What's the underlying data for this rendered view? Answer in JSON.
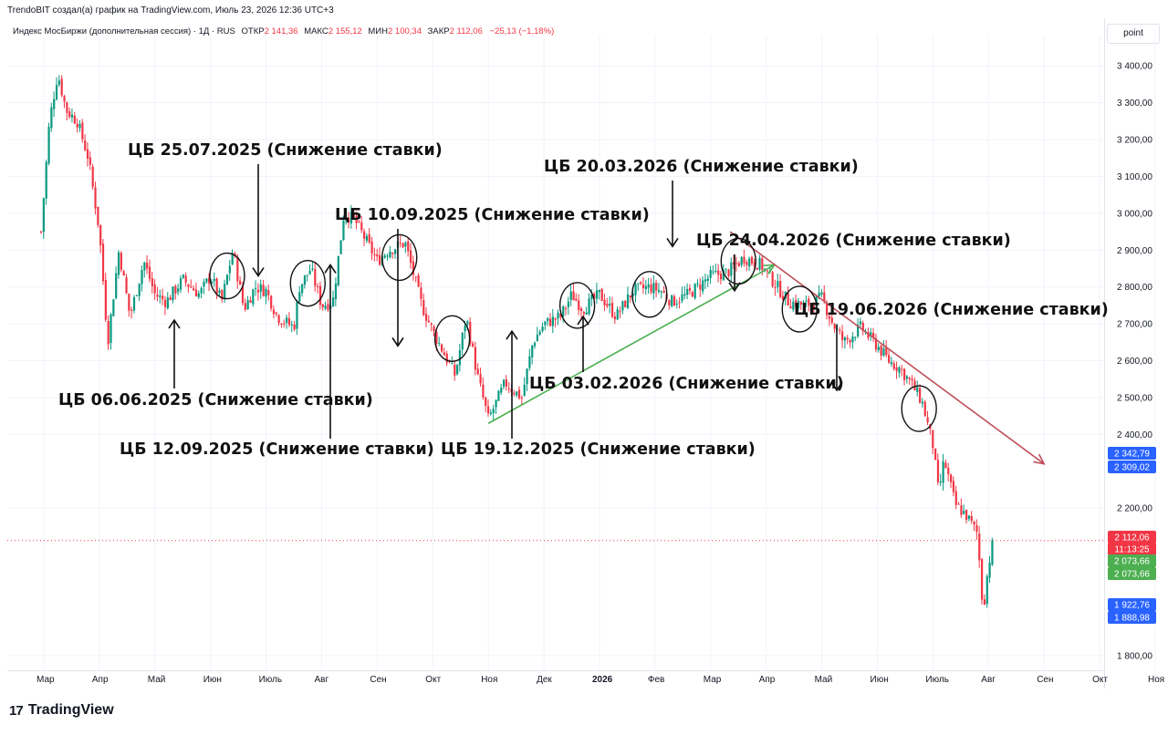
{
  "header": {
    "title": "TrendoBIT создал(а) график на TradingView.com, Июль 23, 2026 12:36 UTC+3"
  },
  "legend": {
    "symbol": "Индекс МосБиржи (дополнительная сессия) · 1Д · RUS",
    "open_label": "ОТКР",
    "open": "2 141,36",
    "high_label": "МАКС",
    "high": "2 155,12",
    "low_label": "МИН",
    "low": "2 100,34",
    "close_label": "ЗАКР",
    "close": "2 112,06",
    "change": "−25,13 (−1,18%)"
  },
  "axis_unit": "point",
  "footer": {
    "brand": "TradingView",
    "logo": "17"
  },
  "colors": {
    "up": "#089981",
    "down": "#f23645",
    "green_trend": "#4caf50",
    "red_trend": "#c0505a"
  },
  "chart_data": {
    "type": "candlestick",
    "instrument": "Индекс МосБиржи (дополнительная сессия)",
    "timeframe": "1Д",
    "ylim": [
      1760,
      3460
    ],
    "y_ticks": [
      "3 400,00",
      "3 300,00",
      "3 200,00",
      "3 100,00",
      "3 000,00",
      "2 900,00",
      "2 800,00",
      "2 700,00",
      "2 600,00",
      "2 500,00",
      "2 400,00",
      "2 200,00",
      "1 800,00"
    ],
    "y_tick_values": [
      3400,
      3300,
      3200,
      3100,
      3000,
      2900,
      2800,
      2700,
      2600,
      2500,
      2400,
      2200,
      1800
    ],
    "x_ticks": [
      "Мар",
      "Апр",
      "Май",
      "Июн",
      "Июль",
      "Авг",
      "Сен",
      "Окт",
      "Ноя",
      "Дек",
      "2026",
      "Фев",
      "Мар",
      "Апр",
      "Май",
      "Июн",
      "Июль",
      "Авг",
      "Сен",
      "Окт",
      "Ноя"
    ],
    "x_tick_months": [
      0,
      1,
      2,
      3,
      4,
      5,
      6,
      7,
      8,
      9,
      10,
      11,
      12,
      13,
      14,
      15,
      16,
      17,
      18,
      19,
      20
    ],
    "price_path": [
      [
        -0.05,
        2950
      ],
      [
        0.1,
        3250
      ],
      [
        0.25,
        3380
      ],
      [
        0.4,
        3280
      ],
      [
        0.6,
        3250
      ],
      [
        0.8,
        3150
      ],
      [
        1.0,
        2950
      ],
      [
        1.15,
        2650
      ],
      [
        1.35,
        2900
      ],
      [
        1.55,
        2720
      ],
      [
        1.8,
        2870
      ],
      [
        2.0,
        2780
      ],
      [
        2.2,
        2760
      ],
      [
        2.5,
        2820
      ],
      [
        2.8,
        2780
      ],
      [
        3.0,
        2830
      ],
      [
        3.2,
        2760
      ],
      [
        3.4,
        2900
      ],
      [
        3.6,
        2740
      ],
      [
        3.8,
        2800
      ],
      [
        4.0,
        2790
      ],
      [
        4.2,
        2720
      ],
      [
        4.5,
        2690
      ],
      [
        4.6,
        2800
      ],
      [
        4.8,
        2850
      ],
      [
        5.0,
        2750
      ],
      [
        5.2,
        2760
      ],
      [
        5.4,
        3000
      ],
      [
        5.6,
        2980
      ],
      [
        6.0,
        2870
      ],
      [
        6.2,
        2900
      ],
      [
        6.5,
        2920
      ],
      [
        6.8,
        2750
      ],
      [
        7.0,
        2680
      ],
      [
        7.2,
        2620
      ],
      [
        7.4,
        2560
      ],
      [
        7.6,
        2720
      ],
      [
        7.8,
        2560
      ],
      [
        8.0,
        2440
      ],
      [
        8.3,
        2540
      ],
      [
        8.6,
        2500
      ],
      [
        8.8,
        2650
      ],
      [
        9.0,
        2700
      ],
      [
        9.3,
        2720
      ],
      [
        9.5,
        2780
      ],
      [
        9.7,
        2740
      ],
      [
        10.0,
        2780
      ],
      [
        10.3,
        2720
      ],
      [
        10.6,
        2790
      ],
      [
        10.9,
        2800
      ],
      [
        11.1,
        2790
      ],
      [
        11.3,
        2760
      ],
      [
        11.6,
        2780
      ],
      [
        12.0,
        2830
      ],
      [
        12.3,
        2840
      ],
      [
        12.6,
        2880
      ],
      [
        12.9,
        2860
      ],
      [
        13.1,
        2820
      ],
      [
        13.4,
        2760
      ],
      [
        13.7,
        2750
      ],
      [
        14.0,
        2770
      ],
      [
        14.2,
        2700
      ],
      [
        14.4,
        2650
      ],
      [
        14.7,
        2690
      ],
      [
        15.0,
        2640
      ],
      [
        15.2,
        2600
      ],
      [
        15.4,
        2580
      ],
      [
        15.6,
        2540
      ],
      [
        15.8,
        2490
      ],
      [
        16.0,
        2370
      ],
      [
        16.1,
        2240
      ],
      [
        16.2,
        2330
      ],
      [
        16.4,
        2210
      ],
      [
        16.6,
        2180
      ],
      [
        16.8,
        2130
      ],
      [
        16.9,
        1920
      ],
      [
        17.0,
        2050
      ],
      [
        17.1,
        2112
      ]
    ],
    "trend_lines": [
      {
        "name": "green",
        "from": [
          8.0,
          2430
        ],
        "to": [
          13.15,
          2860
        ],
        "arrow": true
      },
      {
        "name": "red",
        "from": [
          12.35,
          2950
        ],
        "to": [
          18.0,
          2320
        ],
        "arrow": true
      }
    ],
    "annotations": [
      {
        "text": "ЦБ 25.07.2025 (Снижение ставки)",
        "target": [
          4.7,
          2830
        ]
      },
      {
        "text": "ЦБ 10.09.2025 (Снижение ставки)",
        "target": [
          7.25,
          2640
        ]
      },
      {
        "text": "ЦБ 20.03.2026 (Снижение ставки)",
        "target": [
          12.6,
          2910
        ]
      },
      {
        "text": "ЦБ 24.04.2026 (Снижение ставки)",
        "target": [
          13.7,
          2790
        ]
      },
      {
        "text": "ЦБ 19.06.2026 (Снижение ставки)",
        "target": [
          15.75,
          2520
        ]
      },
      {
        "text": "ЦБ 06.06.2025 (Снижение ставки)",
        "target": [
          3.25,
          2710
        ]
      },
      {
        "text": "ЦБ 12.09.2025 (Снижение ставки)",
        "target": [
          6.15,
          2860
        ]
      },
      {
        "text": "ЦБ 19.12.2025 (Снижение ставки)",
        "target": [
          9.55,
          2680
        ]
      },
      {
        "text": "ЦБ 03.02.2026 (Снижение ставки)",
        "target": [
          10.85,
          2720
        ]
      }
    ],
    "circled_events": [
      [
        3.3,
        2830
      ],
      [
        4.75,
        2810
      ],
      [
        6.4,
        2880
      ],
      [
        7.35,
        2660
      ],
      [
        9.6,
        2750
      ],
      [
        10.9,
        2780
      ],
      [
        12.5,
        2870
      ],
      [
        13.6,
        2740
      ],
      [
        15.75,
        2470
      ]
    ],
    "price_labels": [
      {
        "text": "2 342,79",
        "value": 2342.79,
        "color": "#2962ff"
      },
      {
        "text": "2 309,02",
        "value": 2309.02,
        "color": "#2962ff"
      },
      {
        "text": "2 112,06",
        "value": 2112.06,
        "color": "#f23645"
      },
      {
        "text": "11:13:25",
        "value": 2112.06,
        "color": "#f23645"
      },
      {
        "text": "2 073,66",
        "value": 2073.66,
        "color": "#4caf50"
      },
      {
        "text": "2 073,66",
        "value": 2073.66,
        "color": "#4caf50"
      },
      {
        "text": "1 922,76",
        "value": 1922.76,
        "color": "#2962ff"
      },
      {
        "text": "1 888,98",
        "value": 1888.98,
        "color": "#2962ff"
      }
    ],
    "last_price": 2112.06
  }
}
